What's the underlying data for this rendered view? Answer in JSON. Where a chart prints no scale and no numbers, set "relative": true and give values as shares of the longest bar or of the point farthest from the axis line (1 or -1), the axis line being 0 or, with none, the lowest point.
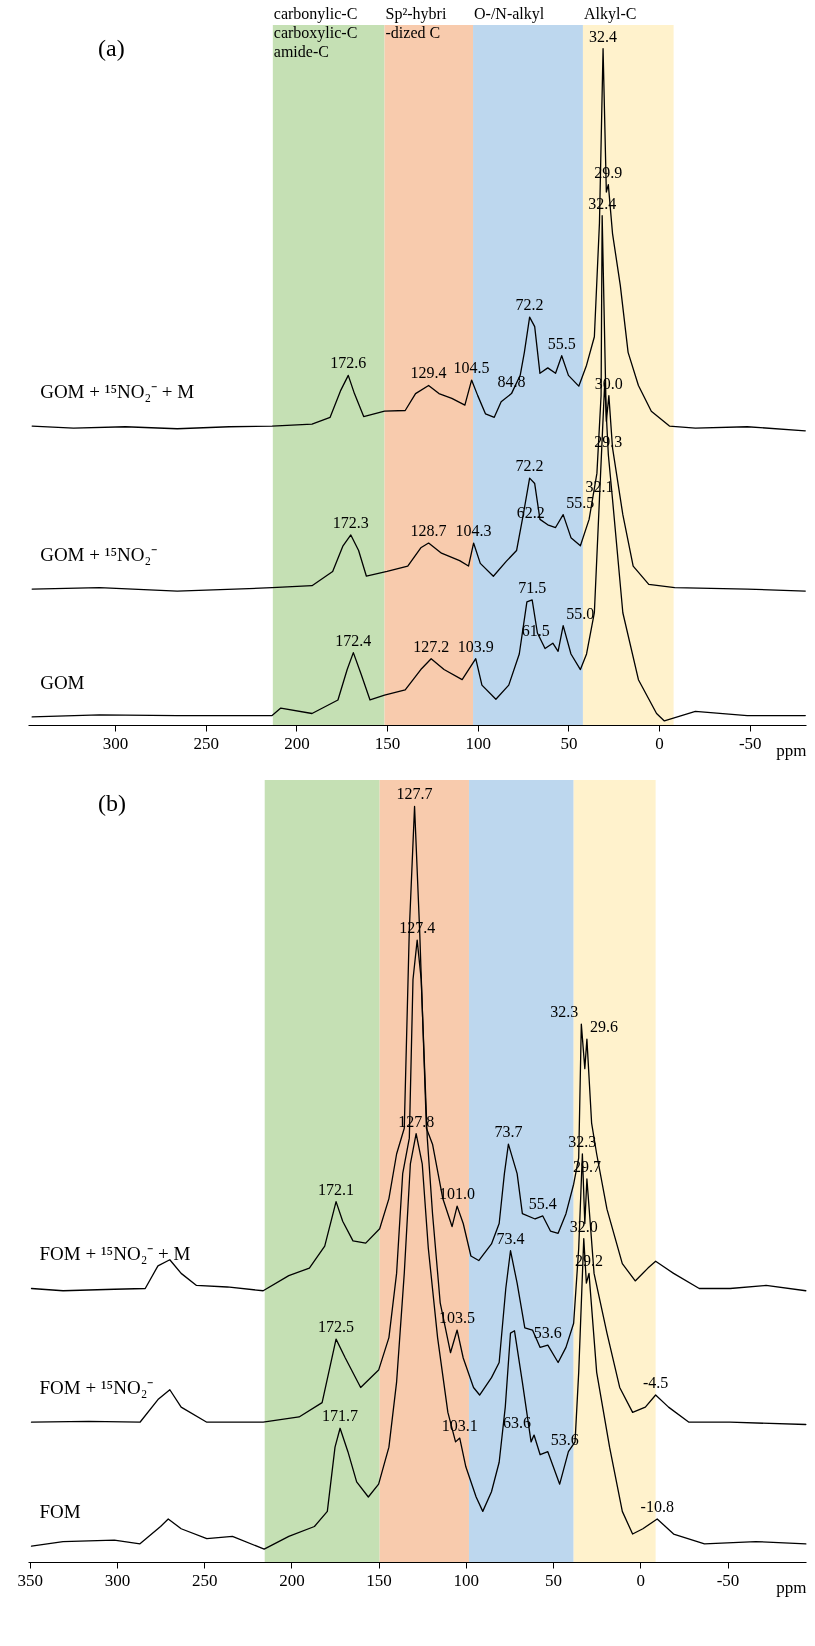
{
  "chart_data": [
    {
      "type": "line",
      "title": "(a)",
      "xlabel": "ppm",
      "relative": true,
      "xlim": [
        348,
        -81
      ],
      "xticks": [
        300,
        250,
        200,
        150,
        100,
        50,
        0,
        -50
      ],
      "bands": [
        {
          "axis": "x",
          "from": 213,
          "to": 151.4,
          "label": "carbonylic-C\ncarboxylic-C\namide-C",
          "color": "#c5e0b4"
        },
        {
          "axis": "x",
          "from": 151.4,
          "to": 102.6,
          "label": "Sp²-hybri\n-dized C",
          "color": "#f8cbad"
        },
        {
          "axis": "x",
          "from": 102.6,
          "to": 42,
          "label": "O-/N-alkyl",
          "color": "#bdd7ee"
        },
        {
          "axis": "x",
          "from": 42,
          "to": -8,
          "label": "Alkyl-C",
          "color": "#fff2cc"
        }
      ],
      "series": [
        {
          "name": "GOM + ¹⁵NO₂⁻ + M",
          "color": "#000000",
          "x": [
            345.7,
            322.9,
            294.3,
            265.7,
            237.1,
            213.4,
            191.4,
            181.4,
            175.7,
            171.4,
            168.0,
            162.9,
            151.4,
            140.0,
            134.3,
            127.1,
            121.4,
            114.3,
            107.1,
            103.4,
            100.0,
            95.7,
            90.9,
            87.1,
            81.4,
            76.6,
            74.3,
            71.4,
            68.6,
            65.7,
            61.4,
            57.1,
            53.7,
            50.0,
            44.3,
            40.0,
            35.7,
            32.9,
            30.9,
            29.1,
            28.0,
            25.7,
            21.4,
            17.1,
            11.4,
            4.3,
            -5.7,
            -20,
            -48.6,
            -80.6
          ],
          "values": [
            0.442,
            0.439,
            0.441,
            0.438,
            0.441,
            0.442,
            0.445,
            0.455,
            0.494,
            0.517,
            0.49,
            0.456,
            0.464,
            0.465,
            0.49,
            0.502,
            0.49,
            0.483,
            0.473,
            0.51,
            0.487,
            0.46,
            0.455,
            0.478,
            0.49,
            0.517,
            0.551,
            0.603,
            0.589,
            0.52,
            0.528,
            0.52,
            0.546,
            0.517,
            0.501,
            0.532,
            0.574,
            0.742,
            1.0,
            0.788,
            0.799,
            0.727,
            0.65,
            0.551,
            0.502,
            0.464,
            0.442,
            0.439,
            0.441,
            0.435
          ]
        },
        {
          "name": "GOM + ¹⁵NO₂⁻",
          "color": "#000000",
          "x": [
            345.7,
            308.6,
            265.7,
            213.4,
            191.4,
            180,
            174.3,
            170,
            165.7,
            161.4,
            150,
            138.6,
            131.4,
            127.1,
            120,
            110,
            105.1,
            102.3,
            98.6,
            91.4,
            84.3,
            78.6,
            74.9,
            71.4,
            68.6,
            65.7,
            61.4,
            57.1,
            52.9,
            48.6,
            43.4,
            38.6,
            34.3,
            32.0,
            31.4,
            29.1,
            27.7,
            25.7,
            20,
            14.3,
            5.7,
            -8.6,
            -48.6,
            -80.6
          ],
          "values": [
            0.201,
            0.203,
            0.198,
            0.203,
            0.206,
            0.227,
            0.265,
            0.281,
            0.258,
            0.22,
            0.227,
            0.235,
            0.262,
            0.269,
            0.254,
            0.243,
            0.235,
            0.269,
            0.239,
            0.22,
            0.242,
            0.258,
            0.311,
            0.365,
            0.357,
            0.304,
            0.296,
            0.292,
            0.311,
            0.277,
            0.265,
            0.304,
            0.372,
            0.487,
            0.753,
            0.449,
            0.487,
            0.41,
            0.311,
            0.235,
            0.208,
            0.203,
            0.201,
            0.198
          ]
        },
        {
          "name": "GOM",
          "color": "#000000",
          "x": [
            345.7,
            308.6,
            265.7,
            213.4,
            208.6,
            191.4,
            177.1,
            172,
            168.6,
            164.3,
            159.4,
            151.4,
            140,
            131.4,
            125.7,
            118.6,
            108.6,
            101.1,
            97.7,
            90,
            82.9,
            77.1,
            72.9,
            70,
            67.1,
            62.9,
            58.6,
            55.7,
            52.9,
            48.6,
            43.4,
            40,
            35.7,
            32.9,
            30,
            28.0,
            25.7,
            20,
            11.4,
            1.4,
            -2.9,
            -20,
            -48.6,
            -80.6
          ],
          "values": [
            0.012,
            0.015,
            0.014,
            0.014,
            0.025,
            0.017,
            0.037,
            0.082,
            0.107,
            0.075,
            0.037,
            0.044,
            0.052,
            0.082,
            0.098,
            0.082,
            0.067,
            0.098,
            0.059,
            0.038,
            0.059,
            0.105,
            0.182,
            0.185,
            0.136,
            0.113,
            0.121,
            0.109,
            0.147,
            0.105,
            0.082,
            0.105,
            0.166,
            0.334,
            0.506,
            0.4,
            0.334,
            0.166,
            0.067,
            0.017,
            0.006,
            0.02,
            0.014,
            0.014
          ]
        }
      ],
      "annotations": [
        {
          "text": "32.4",
          "x": 30.9,
          "y": 1.0
        },
        {
          "text": "29.9",
          "x": 28.0,
          "y": 0.799
        },
        {
          "text": "72.2",
          "x": 71.4,
          "y": 0.603
        },
        {
          "text": "55.5",
          "x": 53.7,
          "y": 0.546
        },
        {
          "text": "172.6",
          "x": 171.4,
          "y": 0.517
        },
        {
          "text": "129.4",
          "x": 127.1,
          "y": 0.502
        },
        {
          "text": "104.5",
          "x": 103.4,
          "y": 0.51
        },
        {
          "text": "84.8",
          "x": 81.4,
          "y": 0.49
        },
        {
          "text": "32.4",
          "x": 31.4,
          "y": 0.753
        },
        {
          "text": "30.0",
          "x": 27.7,
          "y": 0.487
        },
        {
          "text": "72.2",
          "x": 71.4,
          "y": 0.365
        },
        {
          "text": "55.5",
          "x": 52.9,
          "y": 0.311
        },
        {
          "text": "62.2",
          "x": 61.4,
          "y": 0.296
        },
        {
          "text": "172.3",
          "x": 170,
          "y": 0.281
        },
        {
          "text": "128.7",
          "x": 127.1,
          "y": 0.269
        },
        {
          "text": "104.3",
          "x": 102.3,
          "y": 0.269
        },
        {
          "text": "32.1",
          "x": 32.9,
          "y": 0.334
        },
        {
          "text": "71.5",
          "x": 70,
          "y": 0.185
        },
        {
          "text": "55.0",
          "x": 52.9,
          "y": 0.147
        },
        {
          "text": "61.5",
          "x": 58.6,
          "y": 0.121
        },
        {
          "text": "29.3",
          "x": 28.0,
          "y": 0.4
        },
        {
          "text": "172.4",
          "x": 168.6,
          "y": 0.107
        },
        {
          "text": "127.2",
          "x": 125.7,
          "y": 0.098
        },
        {
          "text": "103.9",
          "x": 101.1,
          "y": 0.098
        }
      ]
    },
    {
      "type": "line",
      "title": "(b)",
      "xlabel": "ppm",
      "relative": true,
      "xlim": [
        351,
        -95
      ],
      "xticks": [
        350,
        300,
        250,
        200,
        150,
        100,
        50,
        0,
        -50
      ],
      "bands": [
        {
          "axis": "x",
          "from": 215.3,
          "to": 149.4,
          "color": "#c5e0b4"
        },
        {
          "axis": "x",
          "from": 149.4,
          "to": 98.2,
          "color": "#f8cbad"
        },
        {
          "axis": "x",
          "from": 98.2,
          "to": 38.2,
          "color": "#bdd7ee"
        },
        {
          "axis": "x",
          "from": 38.2,
          "to": -8.8,
          "color": "#fff2cc"
        }
      ],
      "series": [
        {
          "name": "FOM + ¹⁵NO₂⁻ + M",
          "color": "#000000",
          "x": [
            349,
            330.9,
            301.5,
            283.8,
            276.5,
            269.7,
            263.2,
            254.4,
            236.8,
            216.2,
            201.5,
            189.7,
            180.9,
            174.4,
            170.6,
            164.7,
            157.4,
            149.4,
            144.1,
            139.7,
            135.3,
            132.4,
            129.4,
            126.5,
            122.6,
            119.1,
            113.2,
            107.9,
            105,
            101.5,
            97.1,
            92.6,
            85.3,
            80.9,
            77.9,
            75.6,
            70.6,
            67.6,
            60.3,
            55.9,
            51.5,
            47.1,
            42.6,
            38.2,
            35.3,
            33.8,
            31.8,
            30.6,
            27.9,
            25,
            19.1,
            10.3,
            2.9,
            -4.4,
            -8.8,
            -19.1,
            -33.8,
            -51.5,
            -72.1,
            -94.9
          ],
          "values": [
            0.362,
            0.359,
            0.361,
            0.362,
            0.392,
            0.4,
            0.382,
            0.366,
            0.364,
            0.359,
            0.379,
            0.389,
            0.418,
            0.477,
            0.451,
            0.425,
            0.422,
            0.441,
            0.481,
            0.54,
            0.574,
            0.837,
            1.0,
            0.837,
            0.574,
            0.553,
            0.481,
            0.444,
            0.471,
            0.448,
            0.405,
            0.399,
            0.421,
            0.448,
            0.514,
            0.553,
            0.514,
            0.461,
            0.454,
            0.458,
            0.438,
            0.435,
            0.461,
            0.5,
            0.535,
            0.712,
            0.653,
            0.692,
            0.581,
            0.54,
            0.467,
            0.395,
            0.372,
            0.389,
            0.398,
            0.382,
            0.362,
            0.362,
            0.366,
            0.359
          ]
        },
        {
          "name": "FOM + ¹⁵NO₂⁻",
          "color": "#000000",
          "x": [
            349,
            316.2,
            286.8,
            276.5,
            269.7,
            263.2,
            248.5,
            216.2,
            195.6,
            182.4,
            174.4,
            169.1,
            160.3,
            150,
            144.1,
            139.7,
            136.2,
            132.4,
            130.3,
            127.9,
            125.6,
            122.1,
            119.1,
            114.7,
            108.8,
            105,
            101.5,
            95.6,
            92.1,
            85.3,
            80.9,
            77.1,
            74.4,
            70.6,
            66.2,
            61.8,
            57.4,
            53,
            47.1,
            42.6,
            38.2,
            35.3,
            33.2,
            31.8,
            30.6,
            26.5,
            19.1,
            11.8,
            4.4,
            -2.9,
            -8.8,
            -16.2,
            -27.9,
            -51.5,
            -94.9
          ],
          "values": [
            0.185,
            0.186,
            0.185,
            0.215,
            0.228,
            0.205,
            0.185,
            0.185,
            0.192,
            0.211,
            0.295,
            0.27,
            0.231,
            0.254,
            0.297,
            0.382,
            0.514,
            0.561,
            0.771,
            0.823,
            0.771,
            0.561,
            0.461,
            0.343,
            0.277,
            0.307,
            0.27,
            0.231,
            0.221,
            0.244,
            0.264,
            0.362,
            0.412,
            0.369,
            0.31,
            0.307,
            0.284,
            0.287,
            0.264,
            0.284,
            0.316,
            0.415,
            0.54,
            0.448,
            0.507,
            0.382,
            0.303,
            0.231,
            0.198,
            0.205,
            0.221,
            0.205,
            0.185,
            0.185,
            0.182
          ]
        },
        {
          "name": "FOM",
          "color": "#000000",
          "x": [
            349,
            330.9,
            301.5,
            286.8,
            275,
            270.6,
            263.2,
            248.5,
            233.8,
            215.6,
            201.5,
            186.8,
            179.4,
            175,
            172.1,
            167.6,
            162.6,
            155.9,
            150,
            144.1,
            139.7,
            135.3,
            131.8,
            128.5,
            125,
            121.5,
            116.2,
            110.3,
            105.9,
            103.5,
            100,
            94.1,
            90.3,
            85.3,
            80.9,
            77.4,
            74.4,
            72.1,
            67.6,
            62.6,
            60.9,
            57.4,
            53,
            46.2,
            41.2,
            37.4,
            35.3,
            32.4,
            30.9,
            29.4,
            25,
            17.6,
            10.3,
            4.4,
            -1.5,
            -9.7,
            -19.1,
            -36.8,
            -66.2,
            -94.9
          ],
          "values": [
            0.021,
            0.027,
            0.029,
            0.024,
            0.047,
            0.057,
            0.044,
            0.031,
            0.034,
            0.017,
            0.034,
            0.047,
            0.067,
            0.152,
            0.177,
            0.146,
            0.106,
            0.086,
            0.103,
            0.152,
            0.238,
            0.382,
            0.527,
            0.567,
            0.527,
            0.415,
            0.297,
            0.198,
            0.159,
            0.164,
            0.126,
            0.086,
            0.067,
            0.093,
            0.132,
            0.205,
            0.303,
            0.306,
            0.238,
            0.159,
            0.168,
            0.142,
            0.146,
            0.103,
            0.146,
            0.159,
            0.251,
            0.428,
            0.369,
            0.382,
            0.251,
            0.152,
            0.067,
            0.037,
            0.044,
            0.057,
            0.037,
            0.024,
            0.027,
            0.024
          ]
        }
      ],
      "annotations": [
        {
          "text": "127.7",
          "x": 129.4,
          "y": 1.0
        },
        {
          "text": "127.4",
          "x": 127.9,
          "y": 0.823
        },
        {
          "text": "127.8",
          "x": 128.5,
          "y": 0.567
        },
        {
          "text": "32.3",
          "x": 33.8,
          "y": 0.712
        },
        {
          "text": "29.6",
          "x": 30.6,
          "y": 0.692
        },
        {
          "text": "73.7",
          "x": 75.6,
          "y": 0.553
        },
        {
          "text": "32.3",
          "x": 33.2,
          "y": 0.54
        },
        {
          "text": "172.1",
          "x": 174.4,
          "y": 0.477
        },
        {
          "text": "101.0",
          "x": 105,
          "y": 0.471
        },
        {
          "text": "55.4",
          "x": 55.9,
          "y": 0.458
        },
        {
          "text": "29.7",
          "x": 30.6,
          "y": 0.507
        },
        {
          "text": "73.4",
          "x": 74.4,
          "y": 0.412
        },
        {
          "text": "103.5",
          "x": 105,
          "y": 0.307
        },
        {
          "text": "53.6",
          "x": 53,
          "y": 0.287
        },
        {
          "text": "172.5",
          "x": 174.4,
          "y": 0.295
        },
        {
          "text": "-4.5",
          "x": -8.8,
          "y": 0.221
        },
        {
          "text": "32.0",
          "x": 32.4,
          "y": 0.428
        },
        {
          "text": "63.6",
          "x": 60.9,
          "y": 0.168
        },
        {
          "text": "171.7",
          "x": 172.1,
          "y": 0.177
        },
        {
          "text": "103.1",
          "x": 103.5,
          "y": 0.164
        },
        {
          "text": "53.6",
          "x": 53,
          "y": 0.146
        },
        {
          "text": "29.2",
          "x": 29.4,
          "y": 0.382
        },
        {
          "text": "-10.8",
          "x": -9.7,
          "y": 0.057
        }
      ]
    }
  ]
}
